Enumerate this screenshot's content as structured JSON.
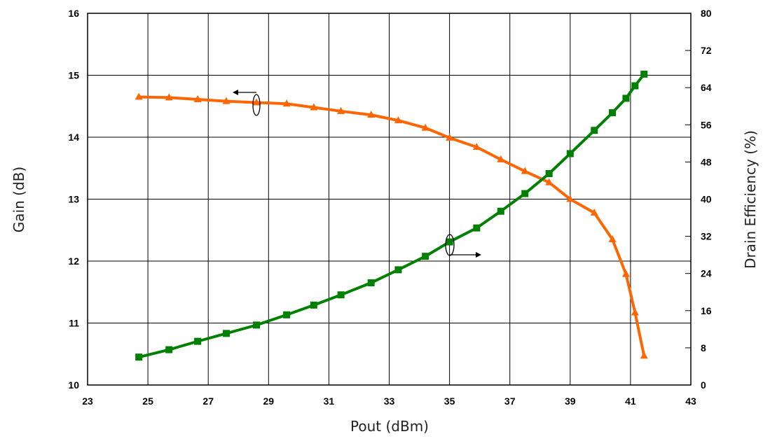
{
  "chart_data": {
    "type": "line",
    "xlabel": "Pout (dBm)",
    "ylabel_left": "Gain (dB)",
    "ylabel_right": "Drain Efficiency (%)",
    "xlim": [
      23,
      43
    ],
    "ylim_left": [
      10,
      16
    ],
    "ylim_right": [
      0,
      80
    ],
    "x_ticks": [
      "23",
      "25",
      "27",
      "29",
      "31",
      "33",
      "35",
      "37",
      "39",
      "41",
      "43"
    ],
    "y_left_ticks": [
      "10",
      "11",
      "12",
      "13",
      "14",
      "15",
      "16"
    ],
    "y_right_ticks": [
      "0",
      "8",
      "16",
      "24",
      "32",
      "40",
      "48",
      "56",
      "64",
      "72",
      "80"
    ],
    "grid": true,
    "series": [
      {
        "axis": "left",
        "color": "#FF6600",
        "marker": "triangle",
        "x": [
          24.7,
          25.7,
          26.65,
          27.6,
          28.6,
          29.6,
          30.5,
          31.4,
          32.4,
          33.3,
          34.2,
          35.0,
          35.9,
          36.7,
          37.5,
          38.3,
          39.0,
          39.8,
          40.4,
          40.85,
          41.15,
          41.45
        ],
        "y": [
          14.65,
          14.64,
          14.61,
          14.58,
          14.56,
          14.54,
          14.48,
          14.42,
          14.36,
          14.27,
          14.15,
          13.99,
          13.84,
          13.64,
          13.45,
          13.27,
          13.0,
          12.78,
          12.35,
          11.79,
          11.17,
          10.47
        ]
      },
      {
        "axis": "right",
        "color": "#008000",
        "marker": "square",
        "x": [
          24.7,
          25.7,
          26.65,
          27.6,
          28.6,
          29.6,
          30.5,
          31.4,
          32.4,
          33.3,
          34.2,
          35.0,
          35.9,
          36.7,
          37.5,
          38.3,
          39.0,
          39.8,
          40.4,
          40.85,
          41.15,
          41.45
        ],
        "y": [
          6.0,
          7.6,
          9.4,
          11.1,
          12.9,
          15.1,
          17.2,
          19.4,
          22.0,
          24.8,
          27.7,
          30.8,
          33.8,
          37.4,
          41.2,
          45.5,
          49.8,
          54.8,
          58.6,
          61.7,
          64.4,
          66.9
        ]
      }
    ]
  }
}
